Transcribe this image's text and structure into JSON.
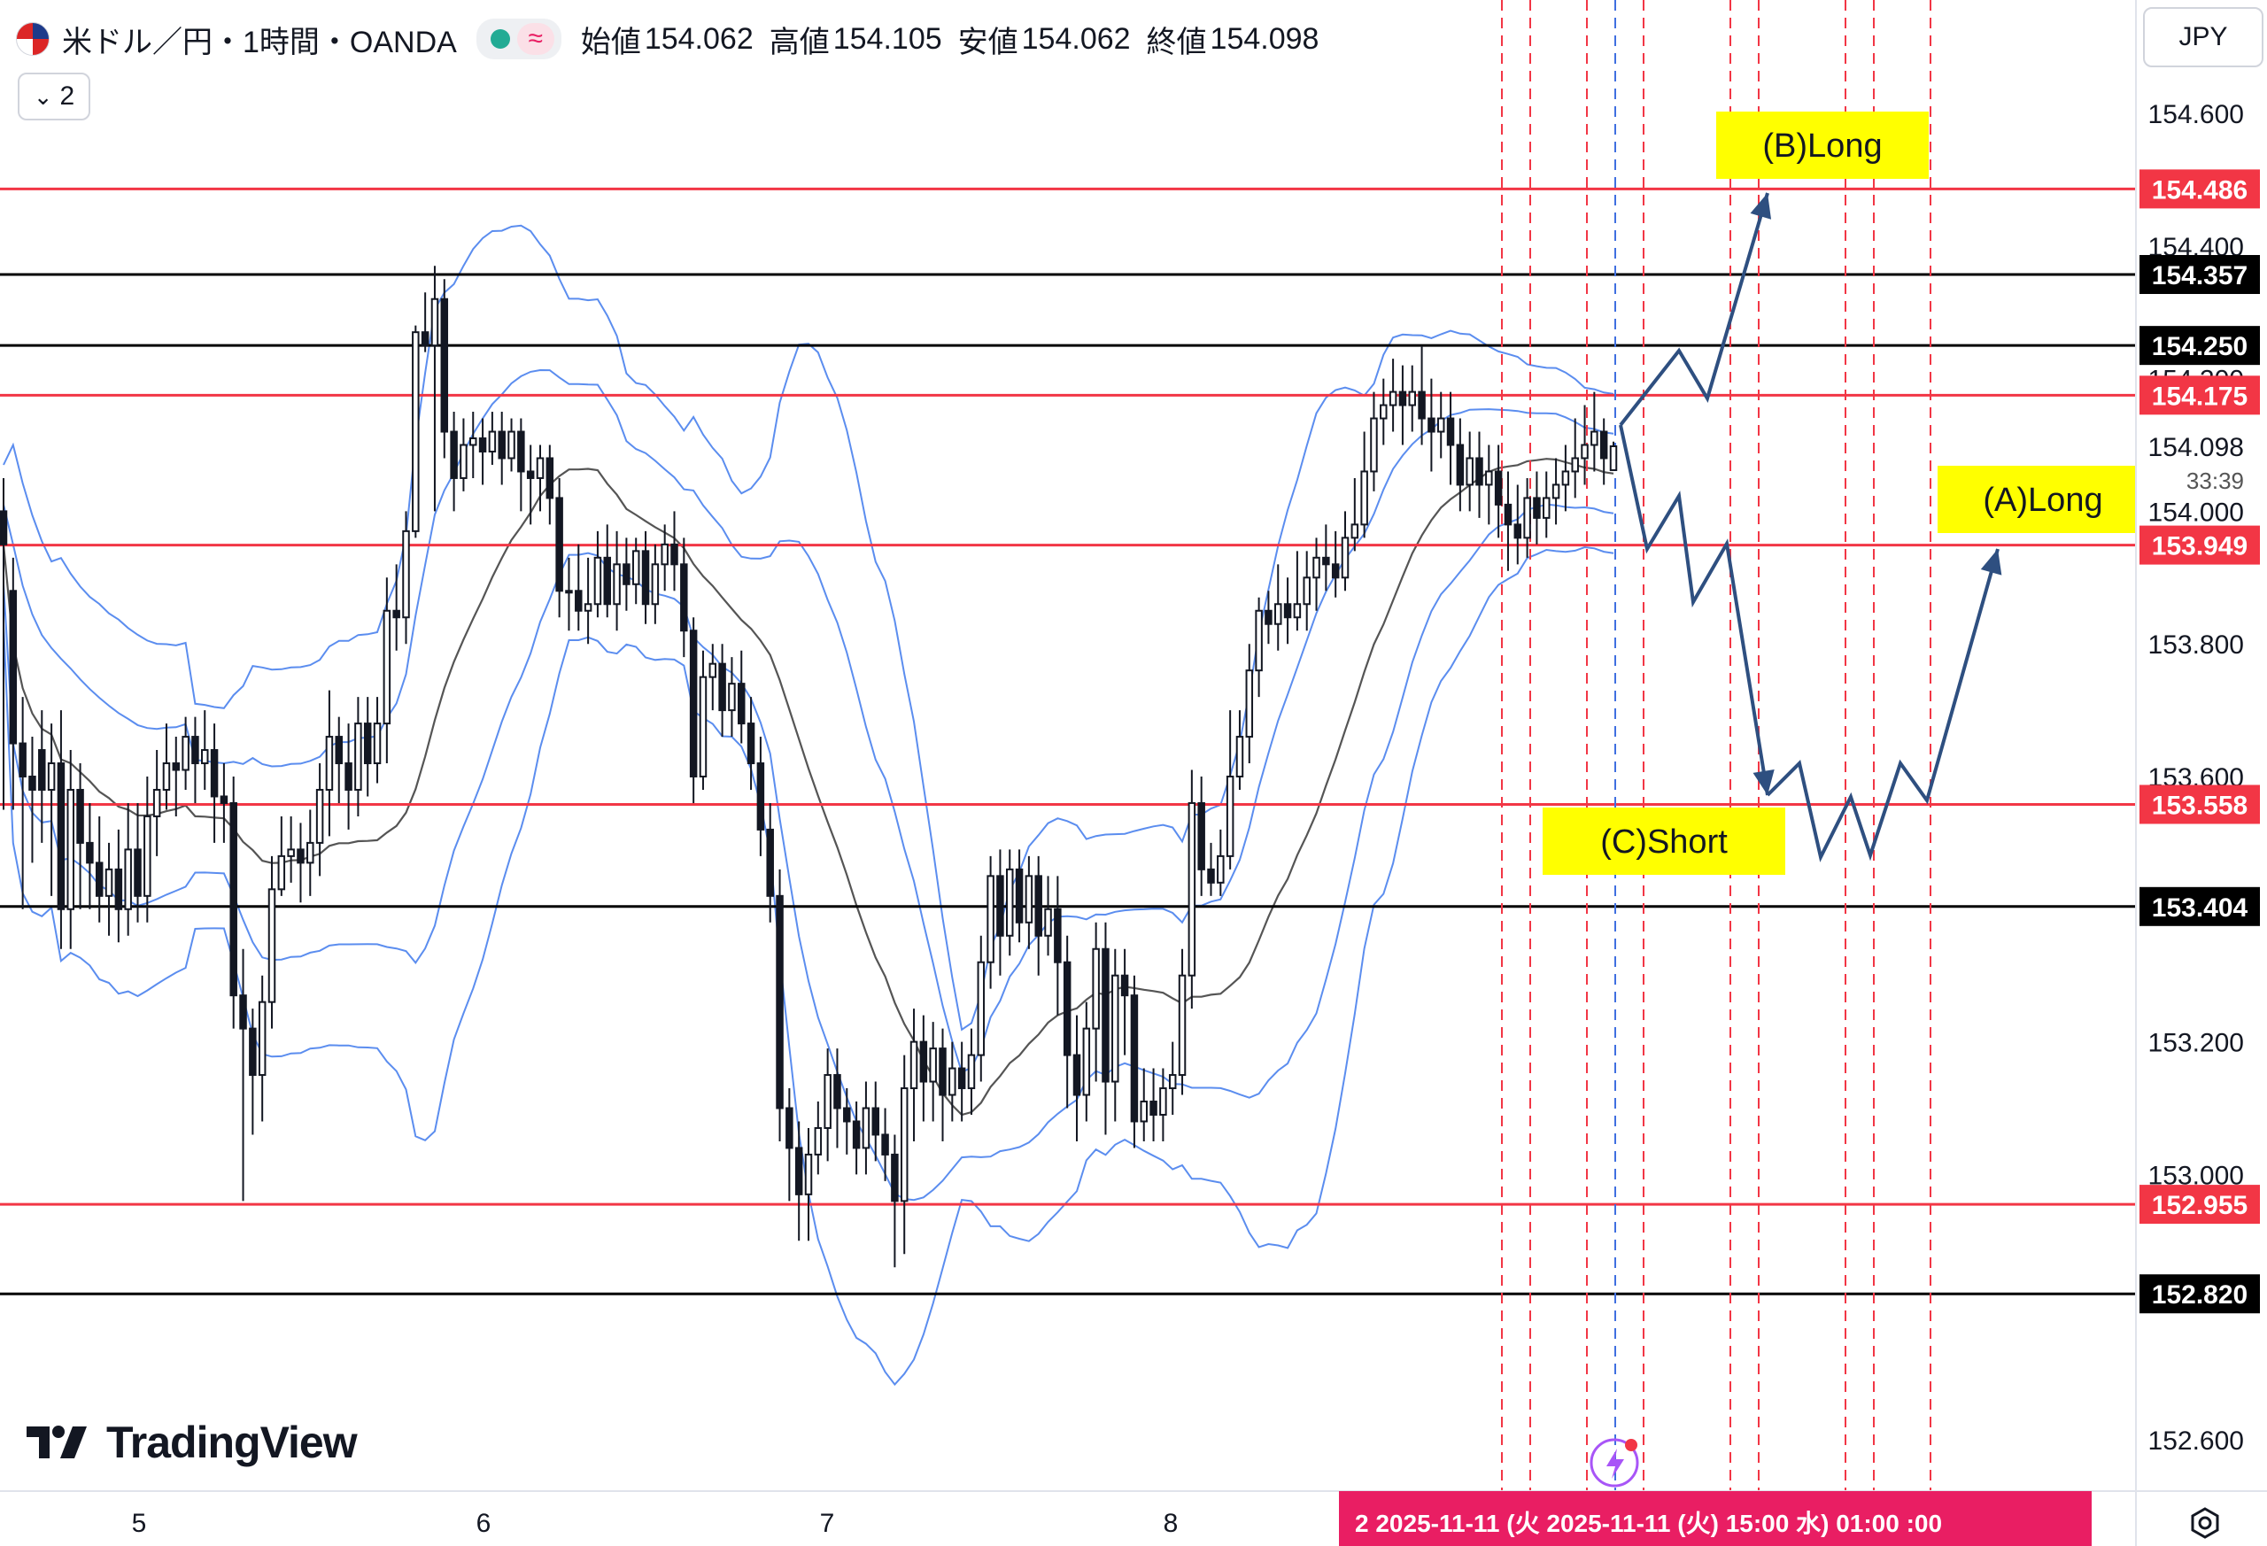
{
  "header": {
    "symbol": "米ドル／円・1時間・OANDA",
    "approx_glyph": "≈",
    "ohlc": [
      {
        "key": "始値",
        "value": "154.062"
      },
      {
        "key": "高値",
        "value": "154.105"
      },
      {
        "key": "安値",
        "value": "154.062"
      },
      {
        "key": "終値",
        "value": "154.098"
      }
    ],
    "collapse_label": "2",
    "collapse_glyph": "⌄"
  },
  "currency": "JPY",
  "logo": "TradingView",
  "colors": {
    "red_line": "#f23645",
    "black_line": "#000000",
    "band": "#5b8def",
    "sma": "#555555",
    "arrow": "#2e4f80",
    "label_bg": "#ffff00",
    "date_bar": "#e91e63"
  },
  "chart_data": {
    "type": "candlestick",
    "ylim": [
      152.52,
      154.72
    ],
    "price_ticks": [
      "154.600",
      "154.400",
      "154.200",
      "154.000",
      "153.800",
      "153.600",
      "153.200",
      "153.000",
      "152.600"
    ],
    "x_labels": [
      "5",
      "6",
      "7",
      "8"
    ],
    "date_bar_text": "2  2025-11-11 (火  2025-11-11 (火)    15:00  水)   01:00  :00",
    "current_price": "154.098",
    "countdown": "33:39",
    "horizontal_lines": [
      {
        "price": 154.486,
        "label": "154.486",
        "color": "red"
      },
      {
        "price": 154.357,
        "label": "154.357",
        "color": "black"
      },
      {
        "price": 154.25,
        "label": "154.250",
        "color": "black"
      },
      {
        "price": 154.175,
        "label": "154.175",
        "color": "red"
      },
      {
        "price": 153.949,
        "label": "153.949",
        "color": "red"
      },
      {
        "price": 153.558,
        "label": "153.558",
        "color": "red"
      },
      {
        "price": 153.404,
        "label": "153.404",
        "color": "black"
      },
      {
        "price": 152.955,
        "label": "152.955",
        "color": "red"
      },
      {
        "price": 152.82,
        "label": "152.820",
        "color": "black"
      }
    ],
    "annotations": [
      {
        "text": "(B)Long",
        "price": 154.54
      },
      {
        "text": "(A)Long",
        "price": 154.01
      },
      {
        "text": "(C)Short",
        "price": 153.5
      }
    ],
    "candles": [
      [
        154.0,
        153.95,
        154.05,
        153.55
      ],
      [
        153.88,
        153.65,
        153.93,
        153.55
      ],
      [
        153.65,
        153.6,
        153.72,
        153.4
      ],
      [
        153.6,
        153.58,
        153.66,
        153.47
      ],
      [
        153.64,
        153.58,
        153.7,
        153.5
      ],
      [
        153.58,
        153.62,
        153.68,
        153.42
      ],
      [
        153.62,
        153.4,
        153.7,
        153.34
      ],
      [
        153.4,
        153.58,
        153.64,
        153.34
      ],
      [
        153.58,
        153.5,
        153.62,
        153.4
      ],
      [
        153.5,
        153.47,
        153.56,
        153.4
      ],
      [
        153.47,
        153.42,
        153.54,
        153.38
      ],
      [
        153.42,
        153.46,
        153.5,
        153.36
      ],
      [
        153.46,
        153.4,
        153.52,
        153.35
      ],
      [
        153.4,
        153.49,
        153.56,
        153.36
      ],
      [
        153.49,
        153.42,
        153.56,
        153.38
      ],
      [
        153.42,
        153.54,
        153.6,
        153.38
      ],
      [
        153.54,
        153.58,
        153.64,
        153.48
      ],
      [
        153.58,
        153.62,
        153.68,
        153.55
      ],
      [
        153.62,
        153.61,
        153.66,
        153.54
      ],
      [
        153.61,
        153.66,
        153.69,
        153.58
      ],
      [
        153.66,
        153.62,
        153.69,
        153.56
      ],
      [
        153.62,
        153.64,
        153.7,
        153.58
      ],
      [
        153.64,
        153.57,
        153.68,
        153.5
      ],
      [
        153.57,
        153.56,
        153.62,
        153.5
      ],
      [
        153.56,
        153.27,
        153.6,
        153.22
      ],
      [
        153.27,
        153.22,
        153.34,
        152.96
      ],
      [
        153.22,
        153.15,
        153.25,
        153.06
      ],
      [
        153.15,
        153.26,
        153.3,
        153.08
      ],
      [
        153.26,
        153.43,
        153.48,
        153.22
      ],
      [
        153.43,
        153.48,
        153.54,
        153.42
      ],
      [
        153.48,
        153.49,
        153.54,
        153.44
      ],
      [
        153.49,
        153.47,
        153.53,
        153.41
      ],
      [
        153.47,
        153.5,
        153.55,
        153.42
      ],
      [
        153.5,
        153.58,
        153.62,
        153.45
      ],
      [
        153.58,
        153.66,
        153.73,
        153.51
      ],
      [
        153.66,
        153.62,
        153.69,
        153.56
      ],
      [
        153.62,
        153.58,
        153.68,
        153.52
      ],
      [
        153.58,
        153.68,
        153.72,
        153.54
      ],
      [
        153.68,
        153.62,
        153.72,
        153.57
      ],
      [
        153.62,
        153.68,
        153.72,
        153.59
      ],
      [
        153.68,
        153.85,
        153.9,
        153.62
      ],
      [
        153.85,
        153.84,
        153.92,
        153.79
      ],
      [
        153.84,
        153.97,
        154.0,
        153.8
      ],
      [
        153.97,
        154.27,
        154.28,
        153.96
      ],
      [
        154.27,
        154.25,
        154.33,
        154.24
      ],
      [
        154.25,
        154.32,
        154.37,
        154.0
      ],
      [
        154.32,
        154.12,
        154.35,
        154.08
      ],
      [
        154.12,
        154.05,
        154.15,
        154.0
      ],
      [
        154.05,
        154.1,
        154.14,
        154.03
      ],
      [
        154.1,
        154.11,
        154.15,
        154.05
      ],
      [
        154.11,
        154.09,
        154.14,
        154.04
      ],
      [
        154.09,
        154.12,
        154.15,
        154.07
      ],
      [
        154.12,
        154.08,
        154.15,
        154.04
      ],
      [
        154.08,
        154.12,
        154.14,
        154.06
      ],
      [
        154.12,
        154.06,
        154.14,
        154.0
      ],
      [
        154.06,
        154.05,
        154.1,
        153.98
      ],
      [
        154.05,
        154.08,
        154.1,
        154.0
      ],
      [
        154.08,
        154.02,
        154.1,
        153.98
      ],
      [
        154.02,
        153.88,
        154.05,
        153.84
      ],
      [
        153.88,
        153.88,
        153.93,
        153.82
      ],
      [
        153.88,
        153.85,
        153.95,
        153.82
      ],
      [
        153.85,
        153.86,
        153.93,
        153.8
      ],
      [
        153.86,
        153.93,
        153.97,
        153.84
      ],
      [
        153.93,
        153.86,
        153.98,
        153.84
      ],
      [
        153.86,
        153.92,
        153.97,
        153.82
      ],
      [
        153.92,
        153.89,
        153.96,
        153.85
      ],
      [
        153.89,
        153.94,
        153.96,
        153.86
      ],
      [
        153.94,
        153.86,
        153.97,
        153.83
      ],
      [
        153.86,
        153.92,
        153.95,
        153.83
      ],
      [
        153.92,
        153.95,
        153.98,
        153.88
      ],
      [
        153.95,
        153.92,
        154.0,
        153.88
      ],
      [
        153.92,
        153.82,
        153.96,
        153.78
      ],
      [
        153.82,
        153.6,
        153.84,
        153.56
      ],
      [
        153.6,
        153.75,
        153.79,
        153.58
      ],
      [
        153.75,
        153.77,
        153.8,
        153.7
      ],
      [
        153.77,
        153.7,
        153.8,
        153.66
      ],
      [
        153.7,
        153.74,
        153.78,
        153.66
      ],
      [
        153.74,
        153.68,
        153.79,
        153.65
      ],
      [
        153.68,
        153.62,
        153.72,
        153.58
      ],
      [
        153.62,
        153.52,
        153.66,
        153.48
      ],
      [
        153.52,
        153.42,
        153.56,
        153.38
      ],
      [
        153.42,
        153.1,
        153.46,
        153.05
      ],
      [
        153.1,
        153.04,
        153.13,
        152.96
      ],
      [
        153.04,
        152.97,
        153.08,
        152.9
      ],
      [
        152.97,
        153.03,
        153.07,
        152.9
      ],
      [
        153.03,
        153.07,
        153.11,
        153.0
      ],
      [
        153.07,
        153.15,
        153.19,
        153.02
      ],
      [
        153.15,
        153.1,
        153.19,
        153.04
      ],
      [
        153.1,
        153.08,
        153.13,
        153.03
      ],
      [
        153.08,
        153.04,
        153.11,
        153.0
      ],
      [
        153.04,
        153.1,
        153.14,
        153.0
      ],
      [
        153.1,
        153.06,
        153.14,
        153.02
      ],
      [
        153.06,
        153.03,
        153.1,
        152.99
      ],
      [
        153.03,
        152.96,
        153.06,
        152.86
      ],
      [
        152.96,
        153.13,
        153.18,
        152.88
      ],
      [
        153.13,
        153.2,
        153.25,
        153.05
      ],
      [
        153.2,
        153.14,
        153.24,
        153.08
      ],
      [
        153.14,
        153.19,
        153.23,
        153.08
      ],
      [
        153.19,
        153.12,
        153.22,
        153.05
      ],
      [
        153.12,
        153.16,
        153.2,
        153.08
      ],
      [
        153.16,
        153.13,
        153.2,
        153.08
      ],
      [
        153.13,
        153.18,
        153.22,
        153.09
      ],
      [
        153.18,
        153.32,
        153.36,
        153.14
      ],
      [
        153.32,
        153.45,
        153.48,
        153.28
      ],
      [
        153.45,
        153.36,
        153.49,
        153.3
      ],
      [
        153.36,
        153.46,
        153.49,
        153.33
      ],
      [
        153.46,
        153.38,
        153.49,
        153.35
      ],
      [
        153.38,
        153.45,
        153.48,
        153.34
      ],
      [
        153.45,
        153.36,
        153.48,
        153.3
      ],
      [
        153.36,
        153.4,
        153.45,
        153.33
      ],
      [
        153.4,
        153.32,
        153.45,
        153.24
      ],
      [
        153.32,
        153.18,
        153.36,
        153.1
      ],
      [
        153.18,
        153.12,
        153.24,
        153.05
      ],
      [
        153.12,
        153.22,
        153.26,
        153.08
      ],
      [
        153.22,
        153.34,
        153.38,
        153.14
      ],
      [
        153.34,
        153.14,
        153.38,
        153.06
      ],
      [
        153.14,
        153.3,
        153.34,
        153.08
      ],
      [
        153.3,
        153.27,
        153.34,
        153.18
      ],
      [
        153.27,
        153.08,
        153.3,
        153.04
      ],
      [
        153.08,
        153.11,
        153.16,
        153.05
      ],
      [
        153.11,
        153.09,
        153.16,
        153.05
      ],
      [
        153.09,
        153.13,
        153.16,
        153.05
      ],
      [
        153.13,
        153.15,
        153.2,
        153.09
      ],
      [
        153.15,
        153.3,
        153.34,
        153.12
      ],
      [
        153.3,
        153.56,
        153.61,
        153.25
      ],
      [
        153.56,
        153.46,
        153.6,
        153.42
      ],
      [
        153.46,
        153.44,
        153.5,
        153.42
      ],
      [
        153.44,
        153.48,
        153.52,
        153.42
      ],
      [
        153.48,
        153.6,
        153.7,
        153.46
      ],
      [
        153.6,
        153.66,
        153.7,
        153.58
      ],
      [
        153.66,
        153.76,
        153.8,
        153.62
      ],
      [
        153.76,
        153.85,
        153.87,
        153.72
      ],
      [
        153.85,
        153.83,
        153.88,
        153.8
      ],
      [
        153.83,
        153.86,
        153.92,
        153.79
      ],
      [
        153.86,
        153.84,
        153.9,
        153.8
      ],
      [
        153.84,
        153.86,
        153.94,
        153.82
      ],
      [
        153.86,
        153.9,
        153.94,
        153.82
      ],
      [
        153.9,
        153.93,
        153.96,
        153.85
      ],
      [
        153.93,
        153.92,
        153.98,
        153.88
      ],
      [
        153.92,
        153.9,
        153.97,
        153.87
      ],
      [
        153.9,
        153.96,
        154.0,
        153.88
      ],
      [
        153.96,
        153.98,
        154.05,
        153.94
      ],
      [
        153.98,
        154.06,
        154.12,
        153.96
      ],
      [
        154.06,
        154.14,
        154.18,
        154.03
      ],
      [
        154.14,
        154.16,
        154.2,
        154.1
      ],
      [
        154.16,
        154.18,
        154.23,
        154.12
      ],
      [
        154.18,
        154.16,
        154.22,
        154.1
      ],
      [
        154.16,
        154.18,
        154.22,
        154.12
      ],
      [
        154.18,
        154.14,
        154.25,
        154.1
      ],
      [
        154.14,
        154.12,
        154.2,
        154.06
      ],
      [
        154.12,
        154.14,
        154.18,
        154.08
      ],
      [
        154.14,
        154.1,
        154.18,
        154.04
      ],
      [
        154.1,
        154.04,
        154.14,
        154.0
      ],
      [
        154.04,
        154.08,
        154.12,
        154.0
      ],
      [
        154.08,
        154.04,
        154.12,
        153.99
      ],
      [
        154.04,
        154.06,
        154.1,
        153.98
      ],
      [
        154.06,
        154.01,
        154.1,
        153.96
      ],
      [
        154.01,
        153.98,
        154.06,
        153.91
      ],
      [
        153.98,
        153.96,
        154.04,
        153.92
      ],
      [
        153.96,
        154.02,
        154.05,
        153.93
      ],
      [
        154.02,
        153.99,
        154.06,
        153.95
      ],
      [
        153.99,
        154.02,
        154.06,
        153.96
      ],
      [
        154.02,
        154.04,
        154.08,
        153.98
      ],
      [
        154.04,
        154.06,
        154.1,
        154.0
      ],
      [
        154.06,
        154.08,
        154.14,
        154.02
      ],
      [
        154.08,
        154.1,
        154.16,
        154.04
      ],
      [
        154.1,
        154.12,
        154.18,
        154.06
      ],
      [
        154.12,
        154.08,
        154.14,
        154.04
      ],
      [
        154.062,
        154.098,
        154.105,
        154.062
      ]
    ]
  }
}
